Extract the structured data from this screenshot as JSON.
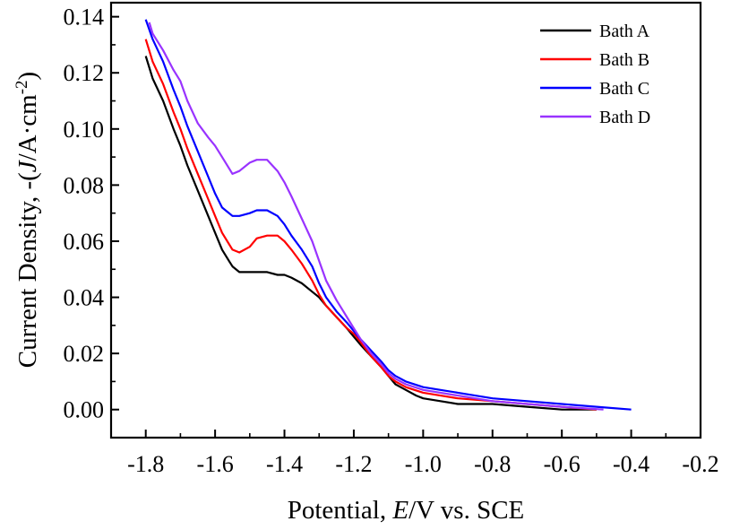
{
  "chart_data": {
    "type": "line",
    "xlabel": {
      "pre": "Potential, ",
      "italic": "E",
      "post": "/V vs. SCE"
    },
    "ylabel": {
      "pre": "Current Density, -(",
      "italic": "J",
      "post": "/A·cm",
      "sup": "-2",
      "close": ")"
    },
    "xlim": [
      -1.9,
      -0.2
    ],
    "ylim": [
      -0.01,
      0.145
    ],
    "xticks": [
      -1.8,
      -1.6,
      -1.4,
      -1.2,
      -1.0,
      -0.8,
      -0.6,
      -0.4,
      -0.2
    ],
    "xtick_labels": [
      "-1.8",
      "-1.6",
      "-1.4",
      "-1.2",
      "-1.0",
      "-0.8",
      "-0.6",
      "-0.4",
      "-0.2"
    ],
    "yticks": [
      0.0,
      0.02,
      0.04,
      0.06,
      0.08,
      0.1,
      0.12,
      0.14
    ],
    "ytick_labels": [
      "0.00",
      "0.02",
      "0.04",
      "0.06",
      "0.08",
      "0.10",
      "0.12",
      "0.14"
    ],
    "grid": false,
    "legend_position": "top-right",
    "series": [
      {
        "name": "Bath A",
        "color": "#000000",
        "x": [
          -1.8,
          -1.78,
          -1.75,
          -1.72,
          -1.7,
          -1.68,
          -1.65,
          -1.62,
          -1.6,
          -1.58,
          -1.56,
          -1.55,
          -1.53,
          -1.5,
          -1.48,
          -1.45,
          -1.42,
          -1.4,
          -1.38,
          -1.35,
          -1.32,
          -1.3,
          -1.28,
          -1.25,
          -1.22,
          -1.2,
          -1.18,
          -1.15,
          -1.12,
          -1.1,
          -1.08,
          -1.05,
          -1.02,
          -1.0,
          -0.95,
          -0.9,
          -0.85,
          -0.8,
          -0.7,
          -0.6,
          -0.5
        ],
        "y": [
          0.126,
          0.118,
          0.11,
          0.1,
          0.094,
          0.087,
          0.078,
          0.069,
          0.063,
          0.057,
          0.053,
          0.051,
          0.049,
          0.049,
          0.049,
          0.049,
          0.048,
          0.048,
          0.047,
          0.045,
          0.042,
          0.04,
          0.037,
          0.033,
          0.029,
          0.026,
          0.023,
          0.019,
          0.015,
          0.012,
          0.009,
          0.007,
          0.005,
          0.004,
          0.003,
          0.002,
          0.002,
          0.002,
          0.001,
          0.0,
          0.0
        ]
      },
      {
        "name": "Bath B",
        "color": "#ff0000",
        "x": [
          -1.8,
          -1.78,
          -1.75,
          -1.72,
          -1.7,
          -1.68,
          -1.65,
          -1.62,
          -1.6,
          -1.58,
          -1.55,
          -1.53,
          -1.5,
          -1.48,
          -1.45,
          -1.42,
          -1.4,
          -1.38,
          -1.35,
          -1.32,
          -1.3,
          -1.28,
          -1.25,
          -1.22,
          -1.2,
          -1.18,
          -1.15,
          -1.12,
          -1.1,
          -1.08,
          -1.05,
          -1.0,
          -0.95,
          -0.9,
          -0.8,
          -0.7,
          -0.6,
          -0.5
        ],
        "y": [
          0.132,
          0.124,
          0.116,
          0.106,
          0.1,
          0.093,
          0.084,
          0.075,
          0.069,
          0.063,
          0.057,
          0.056,
          0.058,
          0.061,
          0.062,
          0.062,
          0.06,
          0.057,
          0.052,
          0.046,
          0.041,
          0.037,
          0.033,
          0.029,
          0.027,
          0.024,
          0.019,
          0.015,
          0.012,
          0.01,
          0.008,
          0.006,
          0.005,
          0.004,
          0.003,
          0.002,
          0.001,
          0.0
        ]
      },
      {
        "name": "Bath C",
        "color": "#0000ff",
        "x": [
          -1.8,
          -1.78,
          -1.75,
          -1.72,
          -1.7,
          -1.68,
          -1.65,
          -1.62,
          -1.6,
          -1.58,
          -1.55,
          -1.53,
          -1.5,
          -1.48,
          -1.45,
          -1.42,
          -1.4,
          -1.38,
          -1.35,
          -1.32,
          -1.3,
          -1.28,
          -1.25,
          -1.22,
          -1.2,
          -1.18,
          -1.15,
          -1.12,
          -1.1,
          -1.08,
          -1.05,
          -1.0,
          -0.95,
          -0.9,
          -0.8,
          -0.7,
          -0.6,
          -0.5,
          -0.4
        ],
        "y": [
          0.139,
          0.132,
          0.124,
          0.114,
          0.108,
          0.101,
          0.092,
          0.083,
          0.077,
          0.072,
          0.069,
          0.069,
          0.07,
          0.071,
          0.071,
          0.069,
          0.066,
          0.062,
          0.057,
          0.051,
          0.045,
          0.04,
          0.035,
          0.031,
          0.028,
          0.025,
          0.021,
          0.017,
          0.014,
          0.012,
          0.01,
          0.008,
          0.007,
          0.006,
          0.004,
          0.003,
          0.002,
          0.001,
          0.0
        ]
      },
      {
        "name": "Bath D",
        "color": "#9933ff",
        "x": [
          -1.79,
          -1.78,
          -1.75,
          -1.72,
          -1.7,
          -1.68,
          -1.65,
          -1.62,
          -1.6,
          -1.58,
          -1.56,
          -1.55,
          -1.53,
          -1.5,
          -1.48,
          -1.45,
          -1.42,
          -1.4,
          -1.38,
          -1.35,
          -1.32,
          -1.3,
          -1.28,
          -1.25,
          -1.22,
          -1.2,
          -1.18,
          -1.15,
          -1.12,
          -1.1,
          -1.08,
          -1.05,
          -1.0,
          -0.95,
          -0.9,
          -0.8,
          -0.7,
          -0.6,
          -0.48
        ],
        "y": [
          0.138,
          0.134,
          0.128,
          0.121,
          0.117,
          0.11,
          0.102,
          0.097,
          0.094,
          0.09,
          0.086,
          0.084,
          0.085,
          0.088,
          0.089,
          0.089,
          0.085,
          0.081,
          0.076,
          0.068,
          0.06,
          0.053,
          0.046,
          0.039,
          0.033,
          0.029,
          0.025,
          0.02,
          0.016,
          0.013,
          0.011,
          0.009,
          0.007,
          0.006,
          0.005,
          0.003,
          0.002,
          0.001,
          0.0
        ]
      }
    ]
  }
}
